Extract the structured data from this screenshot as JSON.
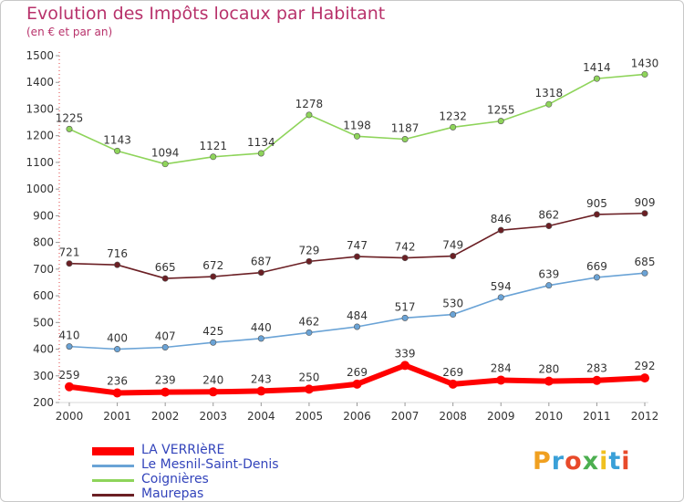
{
  "title": "Evolution des Impôts locaux par Habitant",
  "subtitle": "(en € et par an)",
  "logo_text": "Proxiti",
  "logo_colors": [
    "#f0a020",
    "#3aa0d8",
    "#e84a2a",
    "#4caf50",
    "#f0c020",
    "#3aa0d8",
    "#e84a2a"
  ],
  "chart_data": {
    "type": "line",
    "title": "Evolution des Impôts locaux par Habitant",
    "subtitle": "(en € et par an)",
    "xlabel": "",
    "ylabel": "",
    "x": [
      "2000",
      "2001",
      "2002",
      "2003",
      "2004",
      "2005",
      "2006",
      "2007",
      "2008",
      "2009",
      "2010",
      "2011",
      "2012"
    ],
    "yticks": [
      "200",
      "300",
      "400",
      "500",
      "600",
      "700",
      "800",
      "900",
      "1000",
      "1100",
      "1200",
      "1300",
      "1400",
      "1500"
    ],
    "ylim": [
      200,
      1500
    ],
    "grid": false,
    "legend_position": "bottom-left",
    "series": [
      {
        "name": "Maurepas",
        "color": "#6b1f24",
        "values": [
          721,
          716,
          665,
          672,
          687,
          729,
          747,
          742,
          749,
          846,
          862,
          905,
          909
        ]
      },
      {
        "name": "Coignières",
        "color": "#8ed45a",
        "values": [
          1225,
          1143,
          1094,
          1121,
          1134,
          1278,
          1198,
          1187,
          1232,
          1255,
          1318,
          1414,
          1430
        ]
      },
      {
        "name": "Le Mesnil-Saint-Denis",
        "color": "#6aa3d6",
        "values": [
          410,
          400,
          407,
          425,
          440,
          462,
          484,
          517,
          530,
          594,
          639,
          669,
          685
        ]
      },
      {
        "name": "LA VERRIèRE",
        "color": "#ff0000",
        "values": [
          259,
          236,
          239,
          240,
          243,
          250,
          269,
          339,
          269,
          284,
          280,
          283,
          292
        ]
      }
    ]
  },
  "legend": [
    {
      "label": "LA VERRIèRE",
      "color": "#ff0000"
    },
    {
      "label": "Le Mesnil-Saint-Denis",
      "color": "#6aa3d6"
    },
    {
      "label": "Coignières",
      "color": "#8ed45a"
    },
    {
      "label": "Maurepas",
      "color": "#6b1f24"
    }
  ]
}
